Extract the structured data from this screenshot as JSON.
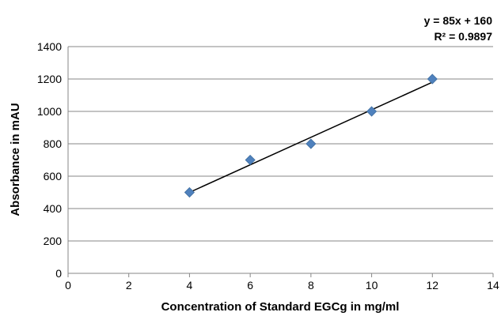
{
  "chart_data": {
    "type": "scatter",
    "xlabel": "Concentration of Standard EGCg in mg/ml",
    "ylabel": "Absorbance in mAU",
    "xlim": [
      0,
      14
    ],
    "ylim": [
      0,
      1400
    ],
    "x_ticks": [
      0,
      2,
      4,
      6,
      8,
      10,
      12,
      14
    ],
    "y_ticks": [
      0,
      200,
      400,
      600,
      800,
      1000,
      1200,
      1400
    ],
    "grid": "horizontal",
    "series": [
      {
        "x": [
          4,
          6,
          8,
          10,
          12
        ],
        "y": [
          500,
          700,
          800,
          1000,
          1200
        ],
        "marker": "diamond",
        "color": "#4f81bd"
      }
    ],
    "trendline": {
      "type": "linear",
      "slope": 85,
      "intercept": 160,
      "x_range": [
        4,
        12
      ],
      "color": "#000000",
      "equation_label": "y = 85x + 160",
      "r2_label": "R² = 0.9897"
    }
  }
}
